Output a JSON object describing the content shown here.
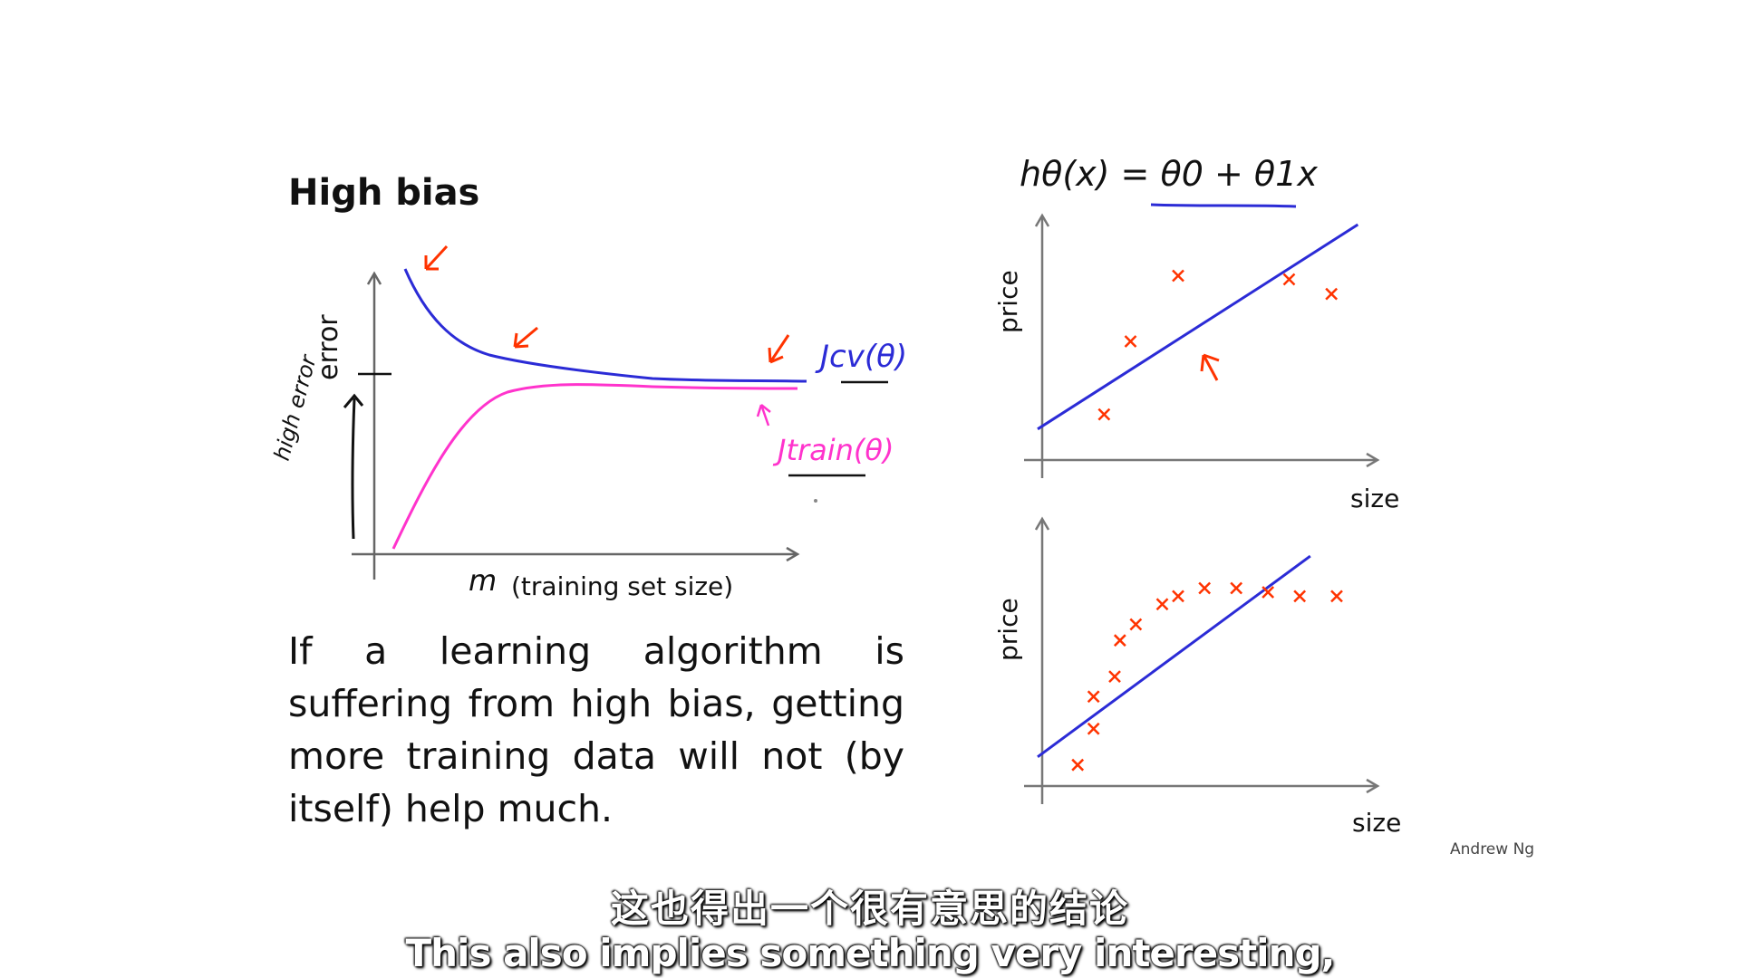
{
  "slide": {
    "title": "High bias",
    "body": "If a learning algorithm is suffering from high bias, getting more training data will not (by itself) help much.",
    "author": "Andrew Ng"
  },
  "learning_curve": {
    "ylabel": "error",
    "xlabel_var": "m",
    "xlabel": "(training set size)",
    "cv_label": "Jcv(θ)",
    "train_label": "Jtrain(θ)",
    "handwritten_note": "high error",
    "cv_color": "#2b2bd6",
    "train_color": "#ff33cc",
    "annotation_color": "#ff3300"
  },
  "hypothesis": "hθ(x) = θ0 + θ1x",
  "chart_data": [
    {
      "type": "scatter",
      "title": "",
      "xlabel": "size",
      "ylabel": "price",
      "points": [
        [
          1,
          1
        ],
        [
          1.5,
          3
        ],
        [
          2.4,
          4.8
        ],
        [
          4.5,
          4.7
        ],
        [
          5.3,
          4.3
        ]
      ],
      "fit_line": [
        [
          0,
          0.6
        ],
        [
          5.8,
          6.2
        ]
      ]
    },
    {
      "type": "scatter",
      "title": "",
      "xlabel": "size",
      "ylabel": "price",
      "points": [
        [
          0.5,
          0.3
        ],
        [
          0.8,
          1.2
        ],
        [
          0.8,
          2.0
        ],
        [
          1.2,
          2.5
        ],
        [
          1.3,
          3.4
        ],
        [
          1.6,
          3.8
        ],
        [
          2.1,
          4.3
        ],
        [
          2.4,
          4.5
        ],
        [
          2.9,
          4.7
        ],
        [
          3.5,
          4.7
        ],
        [
          4.1,
          4.6
        ],
        [
          4.7,
          4.5
        ],
        [
          5.4,
          4.5
        ]
      ],
      "fit_line": [
        [
          0,
          0.5
        ],
        [
          4.9,
          5.5
        ]
      ]
    }
  ],
  "subtitles": {
    "zh": "这也得出一个很有意思的结论",
    "en": "This also implies something very interesting,"
  }
}
